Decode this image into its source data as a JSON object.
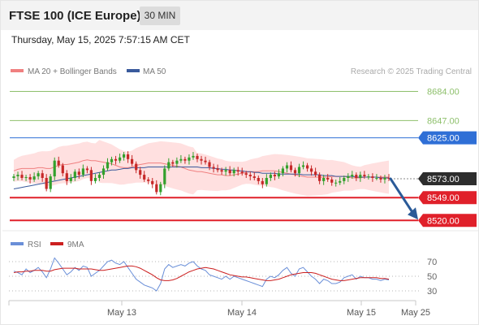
{
  "header": {
    "title": "FTSE 100 (ICE Europe)",
    "interval": "30 MIN",
    "timestamp": "Thursday, May 15, 2025 7:57:15 AM CET"
  },
  "colors": {
    "candle_up": "#33a02c",
    "candle_down": "#c62828",
    "ma20": "#f08080",
    "bollinger_fill": "#ffd6d6",
    "ma50": "#3a5a9c",
    "resistance_green": "#8ec06c",
    "resistance_blue": "#2f6fd6",
    "support_red": "#e0202a",
    "current_price": "#2d2d2d",
    "arrow": "#2a5a98",
    "rsi": "#6a8fd8",
    "rsi_ma": "#cc1f1f"
  },
  "chart_data": [
    {
      "type": "candlestick",
      "legend": [
        {
          "name": "MA 20 + Bollinger Bands",
          "color": "#f08080"
        },
        {
          "name": "MA 50",
          "color": "#3a5a9c"
        }
      ],
      "watermark": "Research © 2025 Trading Central",
      "x_ticks": [
        "May 13",
        "May 14",
        "May 15",
        "May 25"
      ],
      "ylim": [
        8512,
        8698
      ],
      "levels": [
        {
          "label": "8684.00",
          "value": 8684,
          "kind": "resistance",
          "color": "#8ec06c"
        },
        {
          "label": "8647.00",
          "value": 8647,
          "kind": "resistance",
          "color": "#8ec06c"
        },
        {
          "label": "8625.00",
          "value": 8625,
          "kind": "pivot",
          "color": "#2f6fd6"
        },
        {
          "label": "8573.00",
          "value": 8573,
          "kind": "current",
          "color": "#2d2d2d"
        },
        {
          "label": "8549.00",
          "value": 8549,
          "kind": "support",
          "color": "#e0202a"
        },
        {
          "label": "8520.00",
          "value": 8520,
          "kind": "support",
          "color": "#e0202a"
        }
      ],
      "forecast": {
        "from": 8573,
        "to": 8520
      },
      "close": [
        8576,
        8578,
        8574,
        8575,
        8572,
        8576,
        8580,
        8574,
        8560,
        8576,
        8596,
        8590,
        8580,
        8570,
        8574,
        8582,
        8578,
        8586,
        8584,
        8570,
        8574,
        8578,
        8586,
        8594,
        8598,
        8596,
        8600,
        8604,
        8598,
        8592,
        8584,
        8578,
        8572,
        8570,
        8566,
        8556,
        8566,
        8586,
        8594,
        8592,
        8596,
        8598,
        8596,
        8600,
        8602,
        8598,
        8596,
        8594,
        8588,
        8586,
        8584,
        8582,
        8584,
        8580,
        8584,
        8582,
        8580,
        8578,
        8576,
        8574,
        8570,
        8566,
        8574,
        8578,
        8576,
        8580,
        8586,
        8590,
        8584,
        8580,
        8588,
        8590,
        8586,
        8582,
        8578,
        8570,
        8574,
        8572,
        8568,
        8568,
        8570,
        8574,
        8576,
        8578,
        8574,
        8578,
        8576,
        8576,
        8574,
        8574,
        8572,
        8574,
        8573
      ],
      "ma20": [
        8583,
        8585,
        8586,
        8586,
        8586,
        8586,
        8587,
        8587,
        8586,
        8586,
        8588,
        8590,
        8591,
        8591,
        8592,
        8593,
        8594,
        8596,
        8597,
        8596,
        8596,
        8595,
        8594,
        8593,
        8592,
        8590,
        8588,
        8587,
        8587,
        8588,
        8590,
        8591,
        8592,
        8593,
        8593,
        8593,
        8593,
        8592,
        8591,
        8590,
        8589,
        8588,
        8586,
        8584,
        8583,
        8582,
        8582,
        8581,
        8580,
        8579,
        8578,
        8578,
        8577,
        8577,
        8578,
        8579,
        8580,
        8581,
        8582,
        8582,
        8582,
        8583,
        8583,
        8583,
        8583,
        8582,
        8581,
        8580,
        8579,
        8578,
        8577,
        8576,
        8575,
        8575,
        8575,
        8575,
        8575,
        8575,
        8576,
        8576,
        8576,
        8576,
        8575,
        8574,
        8574,
        8574,
        8575,
        8575,
        8575,
        8575,
        8575,
        8575,
        8575
      ],
      "ma50": [
        8560,
        8561,
        8562,
        8563,
        8564,
        8565,
        8566,
        8567,
        8568,
        8569,
        8570,
        8571,
        8572,
        8573,
        8574,
        8575,
        8576,
        8577,
        8578,
        8579,
        8580,
        8581,
        8582,
        8583,
        8584,
        8584,
        8585,
        8586,
        8586,
        8587,
        8587,
        8587,
        8587,
        8588,
        8588,
        8588,
        8588,
        8588,
        8588,
        8588,
        8588,
        8588,
        8588,
        8588,
        8588,
        8588,
        8587,
        8587,
        8587,
        8586,
        8586,
        8585,
        8585,
        8584,
        8584,
        8583,
        8583,
        8582,
        8582,
        8581,
        8581,
        8580,
        8580,
        8580,
        8580,
        8579,
        8579,
        8579,
        8579,
        8579,
        8579,
        8578,
        8578,
        8578,
        8578,
        8578,
        8577,
        8577,
        8577,
        8576,
        8576,
        8576,
        8576,
        8576,
        8575,
        8575,
        8575,
        8575,
        8575,
        8575,
        8574,
        8574,
        8574
      ]
    },
    {
      "type": "line",
      "legend": [
        {
          "name": "RSI",
          "color": "#6a8fd8"
        },
        {
          "name": "9MA",
          "color": "#cc1f1f"
        }
      ],
      "y_ticks": [
        70,
        50,
        30
      ],
      "ylim": [
        20,
        80
      ],
      "series": [
        {
          "name": "RSI",
          "values": [
            57,
            55,
            52,
            60,
            55,
            58,
            62,
            56,
            48,
            60,
            75,
            68,
            60,
            52,
            56,
            62,
            58,
            64,
            62,
            50,
            54,
            58,
            64,
            70,
            72,
            68,
            66,
            70,
            62,
            54,
            46,
            42,
            38,
            36,
            34,
            30,
            40,
            60,
            66,
            62,
            64,
            66,
            64,
            68,
            70,
            64,
            60,
            58,
            52,
            50,
            48,
            46,
            50,
            46,
            50,
            48,
            46,
            44,
            42,
            40,
            38,
            36,
            46,
            50,
            48,
            52,
            58,
            62,
            54,
            50,
            60,
            62,
            56,
            50,
            46,
            40,
            46,
            44,
            40,
            40,
            42,
            48,
            50,
            52,
            46,
            50,
            48,
            48,
            46,
            46,
            44,
            46,
            45
          ]
        },
        {
          "name": "9MA",
          "values": [
            55,
            56,
            56,
            57,
            57,
            58,
            58,
            58,
            57,
            57,
            59,
            60,
            61,
            61,
            61,
            61,
            60,
            60,
            60,
            60,
            59,
            58,
            58,
            59,
            60,
            61,
            62,
            63,
            64,
            64,
            63,
            61,
            58,
            55,
            52,
            48,
            45,
            44,
            44,
            45,
            47,
            50,
            53,
            56,
            58,
            60,
            61,
            62,
            61,
            60,
            58,
            56,
            54,
            52,
            51,
            50,
            49,
            49,
            48,
            47,
            46,
            45,
            44,
            44,
            45,
            46,
            48,
            50,
            52,
            53,
            54,
            55,
            55,
            55,
            54,
            52,
            50,
            48,
            46,
            45,
            44,
            44,
            45,
            46,
            47,
            48,
            48,
            48,
            48,
            48,
            47,
            47,
            46
          ]
        }
      ]
    }
  ]
}
